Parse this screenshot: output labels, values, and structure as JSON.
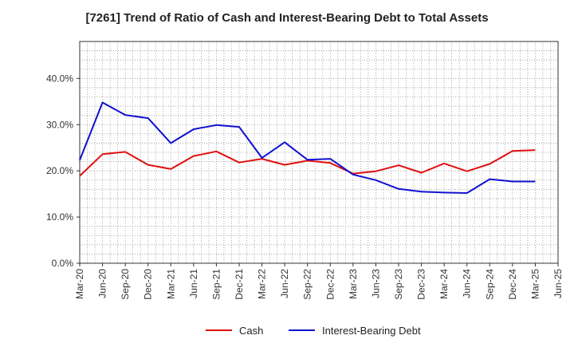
{
  "chart_data": {
    "type": "line",
    "title": "[7261]  Trend of Ratio of Cash and Interest-Bearing Debt to Total Assets",
    "xlabel": "",
    "ylabel": "",
    "categories": [
      "Mar-20",
      "Jun-20",
      "Sep-20",
      "Dec-20",
      "Mar-21",
      "Jun-21",
      "Sep-21",
      "Dec-21",
      "Mar-22",
      "Jun-22",
      "Sep-22",
      "Dec-22",
      "Mar-23",
      "Jun-23",
      "Sep-23",
      "Dec-23",
      "Mar-24",
      "Jun-24",
      "Sep-24",
      "Dec-24",
      "Mar-25",
      "Jun-25"
    ],
    "ylim": [
      0,
      48
    ],
    "yticks": [
      0,
      10,
      20,
      30,
      40
    ],
    "ytick_labels": [
      "0.0%",
      "10.0%",
      "20.0%",
      "30.0%",
      "40.0%"
    ],
    "grid": true,
    "legend_position": "bottom",
    "series": [
      {
        "name": "Cash",
        "color": "#e01010",
        "values": [
          18.9,
          23.6,
          24.1,
          21.3,
          20.4,
          23.2,
          24.2,
          21.8,
          22.6,
          21.3,
          22.2,
          21.7,
          19.4,
          19.9,
          21.2,
          19.6,
          21.6,
          19.9,
          21.5,
          24.3,
          24.5,
          null
        ]
      },
      {
        "name": "Interest-Bearing Debt",
        "color": "#1010d0",
        "values": [
          22.3,
          34.8,
          32.1,
          31.4,
          26.0,
          29.0,
          29.9,
          29.5,
          22.8,
          26.2,
          22.4,
          22.6,
          19.2,
          18.0,
          16.1,
          15.5,
          15.3,
          15.2,
          18.2,
          17.7,
          17.7,
          null
        ]
      }
    ]
  }
}
